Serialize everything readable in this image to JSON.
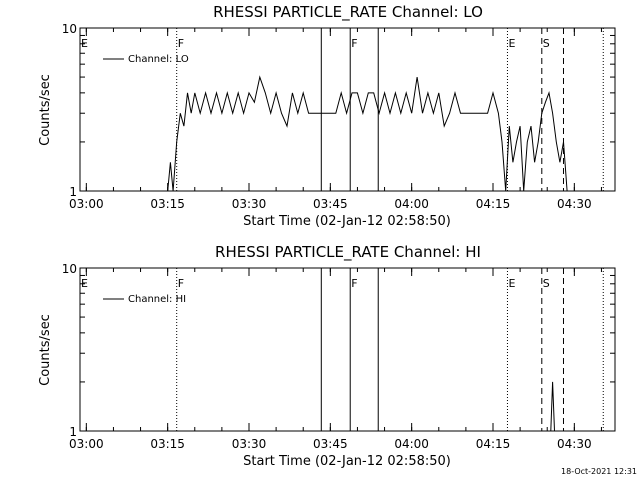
{
  "chart_data": [
    {
      "type": "line",
      "title": "RHESSI PARTICLE_RATE Channel: LO",
      "xlabel": "Start Time (02-Jan-12 02:58:50)",
      "ylabel": "Counts/sec",
      "yscale": "log",
      "ylim": [
        1,
        10
      ],
      "xlim": [
        "02:58:50",
        "04:37:30"
      ],
      "x_ticks": [
        "03:00",
        "03:15",
        "03:30",
        "03:45",
        "04:00",
        "04:15",
        "04:30"
      ],
      "y_ticks": [
        "1",
        "10"
      ],
      "legend": {
        "entries": [
          "Channel: LO"
        ],
        "placement": "top-left"
      },
      "grid": false,
      "markers": [
        {
          "label": "E",
          "time": "02:58:50",
          "style": "dotted"
        },
        {
          "label": "F",
          "time": "03:16:40",
          "style": "dotted"
        },
        {
          "label": "",
          "time": "03:43:20",
          "style": "solid"
        },
        {
          "label": "F",
          "time": "03:48:40",
          "style": "solid"
        },
        {
          "label": "",
          "time": "03:53:50",
          "style": "solid"
        },
        {
          "label": "E",
          "time": "04:17:40",
          "style": "dotted"
        },
        {
          "label": "S",
          "time": "04:24:00",
          "style": "dashed"
        },
        {
          "label": "",
          "time": "04:28:00",
          "style": "dashed"
        },
        {
          "label": "",
          "time": "04:35:20",
          "style": "dotted"
        }
      ],
      "series": [
        {
          "name": "Channel: LO",
          "points": [
            [
              "03:15:00",
              1
            ],
            [
              "03:15:30",
              1.5
            ],
            [
              "03:16:00",
              1
            ],
            [
              "03:16:40",
              2
            ],
            [
              "03:17:20",
              3
            ],
            [
              "03:18:00",
              2.5
            ],
            [
              "03:18:40",
              4
            ],
            [
              "03:19:20",
              3
            ],
            [
              "03:20:00",
              4
            ],
            [
              "03:21:00",
              3
            ],
            [
              "03:22:00",
              4
            ],
            [
              "03:23:00",
              3
            ],
            [
              "03:24:00",
              4
            ],
            [
              "03:25:00",
              3
            ],
            [
              "03:26:00",
              4
            ],
            [
              "03:27:00",
              3
            ],
            [
              "03:28:00",
              4
            ],
            [
              "03:29:00",
              3
            ],
            [
              "03:30:00",
              4
            ],
            [
              "03:31:00",
              3.5
            ],
            [
              "03:32:00",
              5
            ],
            [
              "03:33:00",
              4
            ],
            [
              "03:34:00",
              3
            ],
            [
              "03:35:00",
              4
            ],
            [
              "03:36:00",
              3
            ],
            [
              "03:37:00",
              2.5
            ],
            [
              "03:38:00",
              4
            ],
            [
              "03:39:00",
              3
            ],
            [
              "03:40:00",
              4
            ],
            [
              "03:41:00",
              3
            ],
            [
              "03:42:00",
              3
            ],
            [
              "03:44:00",
              3
            ],
            [
              "03:46:00",
              3
            ],
            [
              "03:47:00",
              4
            ],
            [
              "03:48:00",
              3
            ],
            [
              "03:49:00",
              4
            ],
            [
              "03:50:00",
              4
            ],
            [
              "03:51:00",
              3
            ],
            [
              "03:52:00",
              4
            ],
            [
              "03:53:00",
              4
            ],
            [
              "03:54:00",
              3
            ],
            [
              "03:55:00",
              4
            ],
            [
              "03:56:00",
              3
            ],
            [
              "03:57:00",
              4
            ],
            [
              "03:58:00",
              3
            ],
            [
              "03:59:00",
              4
            ],
            [
              "04:00:00",
              3
            ],
            [
              "04:01:00",
              5
            ],
            [
              "04:02:00",
              3
            ],
            [
              "04:03:00",
              4
            ],
            [
              "04:04:00",
              3
            ],
            [
              "04:05:00",
              4
            ],
            [
              "04:06:00",
              2.5
            ],
            [
              "04:07:00",
              3
            ],
            [
              "04:08:00",
              4
            ],
            [
              "04:09:00",
              3
            ],
            [
              "04:10:00",
              3
            ],
            [
              "04:12:00",
              3
            ],
            [
              "04:14:00",
              3
            ],
            [
              "04:15:00",
              4
            ],
            [
              "04:16:00",
              3
            ],
            [
              "04:16:40",
              2
            ],
            [
              "04:17:20",
              1
            ],
            [
              "04:18:00",
              2.5
            ],
            [
              "04:18:40",
              1.5
            ],
            [
              "04:19:20",
              2
            ],
            [
              "04:20:00",
              2.5
            ],
            [
              "04:20:40",
              1
            ],
            [
              "04:21:20",
              2
            ],
            [
              "04:22:00",
              2.5
            ],
            [
              "04:22:40",
              1.5
            ],
            [
              "04:23:20",
              2
            ],
            [
              "04:24:00",
              3
            ],
            [
              "04:24:40",
              3.5
            ],
            [
              "04:25:20",
              4
            ],
            [
              "04:26:00",
              3
            ],
            [
              "04:26:40",
              2
            ],
            [
              "04:27:20",
              1.5
            ],
            [
              "04:28:00",
              2
            ],
            [
              "04:28:40",
              1
            ]
          ]
        }
      ]
    },
    {
      "type": "line",
      "title": "RHESSI PARTICLE_RATE Channel: HI",
      "xlabel": "Start Time (02-Jan-12 02:58:50)",
      "ylabel": "Counts/sec",
      "yscale": "log",
      "ylim": [
        1,
        10
      ],
      "xlim": [
        "02:58:50",
        "04:37:30"
      ],
      "x_ticks": [
        "03:00",
        "03:15",
        "03:30",
        "03:45",
        "04:00",
        "04:15",
        "04:30"
      ],
      "y_ticks": [
        "1",
        "10"
      ],
      "legend": {
        "entries": [
          "Channel: HI"
        ],
        "placement": "top-left"
      },
      "grid": false,
      "markers": [
        {
          "label": "E",
          "time": "02:58:50",
          "style": "dotted"
        },
        {
          "label": "F",
          "time": "03:16:40",
          "style": "dotted"
        },
        {
          "label": "",
          "time": "03:43:20",
          "style": "solid"
        },
        {
          "label": "F",
          "time": "03:48:40",
          "style": "solid"
        },
        {
          "label": "",
          "time": "03:53:50",
          "style": "solid"
        },
        {
          "label": "E",
          "time": "04:17:40",
          "style": "dotted"
        },
        {
          "label": "S",
          "time": "04:24:00",
          "style": "dashed"
        },
        {
          "label": "",
          "time": "04:28:00",
          "style": "dashed"
        },
        {
          "label": "",
          "time": "04:35:20",
          "style": "dotted"
        }
      ],
      "series": [
        {
          "name": "Channel: HI",
          "points": [
            [
              "04:25:40",
              1
            ],
            [
              "04:26:00",
              2
            ],
            [
              "04:26:20",
              1
            ]
          ]
        }
      ]
    }
  ],
  "footer": {
    "timestamp": "18-Oct-2021 12:31"
  }
}
